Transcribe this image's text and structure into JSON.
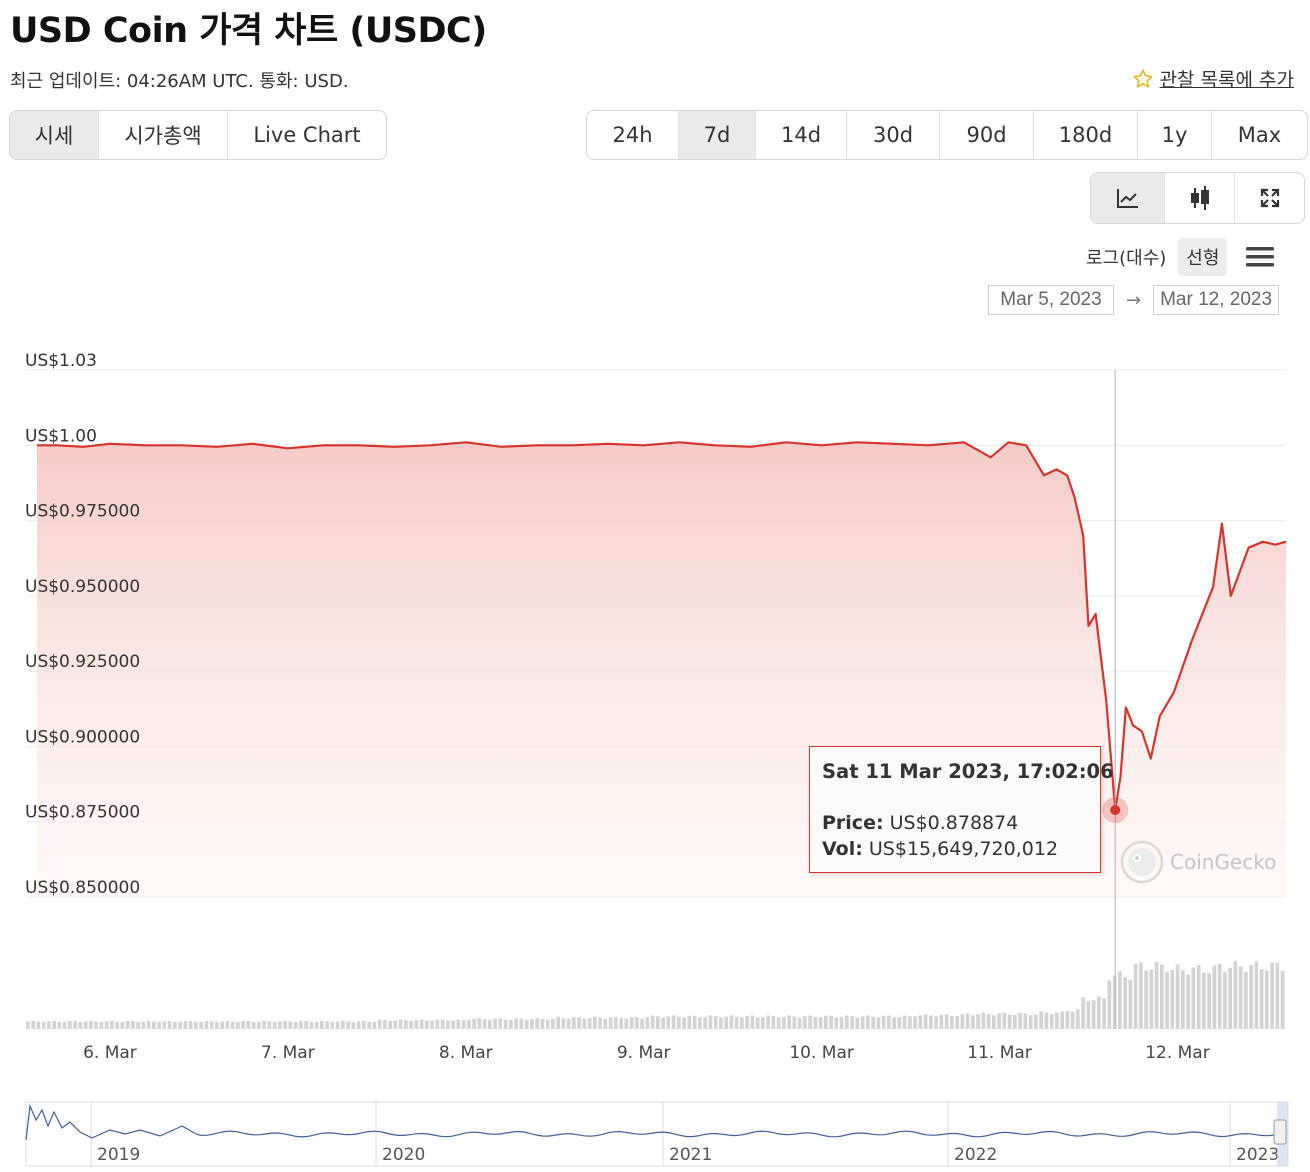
{
  "header": {
    "title": "USD Coin 가격 차트 (USDC)",
    "update_text": "최근 업데이트: 04:26AM UTC. 통화: USD.",
    "watchlist_label": "관찰 목록에 추가"
  },
  "view_tabs": [
    {
      "label": "시세",
      "active": true
    },
    {
      "label": "시가총액",
      "active": false
    },
    {
      "label": "Live Chart",
      "active": false
    }
  ],
  "range_tabs": [
    {
      "label": "24h",
      "active": false
    },
    {
      "label": "7d",
      "active": true
    },
    {
      "label": "14d",
      "active": false
    },
    {
      "label": "30d",
      "active": false
    },
    {
      "label": "90d",
      "active": false
    },
    {
      "label": "180d",
      "active": false
    },
    {
      "label": "1y",
      "active": false
    },
    {
      "label": "Max",
      "active": false
    }
  ],
  "chart_types": [
    {
      "icon": "line-chart-icon",
      "active": true
    },
    {
      "icon": "candlestick-icon",
      "active": false
    },
    {
      "icon": "fullscreen-icon",
      "active": false
    }
  ],
  "scale": {
    "log_label": "로그(대수)",
    "linear_label": "선형",
    "active": "linear"
  },
  "date_range": {
    "from": "Mar 5, 2023",
    "to": "Mar 12, 2023",
    "arrow": "→"
  },
  "tooltip": {
    "date": "Sat 11 Mar 2023, 17:02:06",
    "price_label": "Price:",
    "price_value": "US$0.878874",
    "vol_label": "Vol:",
    "vol_value": "US$15,649,720,012"
  },
  "watermark": "CoinGecko",
  "colors": {
    "line": "#d6342c",
    "fill": "#f6d0cc",
    "volume": "#d0d0d0",
    "navigator": "#3f5e96"
  },
  "chart_data": {
    "type": "line",
    "y_tick_labels": [
      "US$1.03",
      "US$1.00",
      "US$0.975000",
      "US$0.950000",
      "US$0.925000",
      "US$0.900000",
      "US$0.875000",
      "US$0.850000"
    ],
    "y_ticks": [
      1.025,
      1.0,
      0.975,
      0.95,
      0.925,
      0.9,
      0.875,
      0.85
    ],
    "ylim": [
      0.85,
      1.025
    ],
    "x_tick_labels": [
      "6. Mar",
      "7. Mar",
      "8. Mar",
      "9. Mar",
      "10. Mar",
      "11. Mar",
      "12. Mar"
    ],
    "x_ticks": [
      5.0,
      6.0,
      7.0,
      8.0,
      9.0,
      10.0,
      11.0
    ],
    "xlim": [
      4.59,
      11.61
    ],
    "x_unit": "days from Mar 1, 2023",
    "series": [
      {
        "x": [
          4.59,
          4.7,
          4.85,
          5.0,
          5.2,
          5.4,
          5.6,
          5.8,
          6.0,
          6.2,
          6.4,
          6.6,
          6.8,
          7.0,
          7.2,
          7.4,
          7.6,
          7.8,
          8.0,
          8.2,
          8.4,
          8.6,
          8.8,
          9.0,
          9.2,
          9.4,
          9.6,
          9.8,
          9.95,
          10.05,
          10.15,
          10.25,
          10.32,
          10.38,
          10.42,
          10.44,
          10.47,
          10.5,
          10.54,
          10.6,
          10.65,
          10.68,
          10.71,
          10.75,
          10.8,
          10.85,
          10.9,
          10.98,
          11.08,
          11.2,
          11.25,
          11.3,
          11.4,
          11.48,
          11.55,
          11.61
        ],
        "y": [
          1.0,
          1.0,
          0.9995,
          1.0005,
          1.0,
          1.0,
          0.9995,
          1.0005,
          0.999,
          1.0,
          1.0,
          0.9995,
          1.0,
          1.001,
          0.9995,
          1.0,
          1.0,
          1.0005,
          1.0,
          1.001,
          1.0,
          0.9995,
          1.001,
          1.0,
          1.001,
          1.0005,
          1.0,
          1.001,
          0.996,
          1.001,
          1.0,
          0.99,
          0.992,
          0.99,
          0.983,
          0.978,
          0.97,
          0.94,
          0.944,
          0.915,
          0.878874,
          0.89,
          0.913,
          0.907,
          0.905,
          0.896,
          0.91,
          0.918,
          0.935,
          0.953,
          0.974,
          0.95,
          0.966,
          0.968,
          0.967,
          0.968
        ]
      }
    ],
    "volume": {
      "relative_values": [
        0.12,
        0.12,
        0.12,
        0.14,
        0.16,
        0.18,
        0.2,
        0.2,
        0.2,
        0.22,
        0.24,
        0.24,
        0.26,
        0.3,
        0.48,
        0.85,
        1.0,
        0.95,
        1.0,
        1.0
      ],
      "ranges": [
        [
          4.59,
          5.0
        ],
        [
          5.0,
          6.0
        ],
        [
          6.0,
          6.5
        ],
        [
          6.5,
          7.0
        ],
        [
          7.0,
          7.5
        ],
        [
          7.5,
          8.0
        ],
        [
          8.0,
          8.5
        ],
        [
          8.5,
          9.0
        ],
        [
          9.0,
          9.5
        ],
        [
          9.5,
          9.8
        ],
        [
          9.8,
          10.0
        ],
        [
          10.0,
          10.2
        ],
        [
          10.2,
          10.35
        ],
        [
          10.35,
          10.45
        ],
        [
          10.45,
          10.6
        ],
        [
          10.6,
          10.75
        ],
        [
          10.75,
          10.95
        ],
        [
          10.95,
          11.2
        ],
        [
          11.2,
          11.45
        ],
        [
          11.45,
          11.61
        ]
      ]
    },
    "navigator": {
      "x_tick_labels": [
        "2019",
        "2020",
        "2021",
        "2022",
        "2023"
      ]
    }
  }
}
